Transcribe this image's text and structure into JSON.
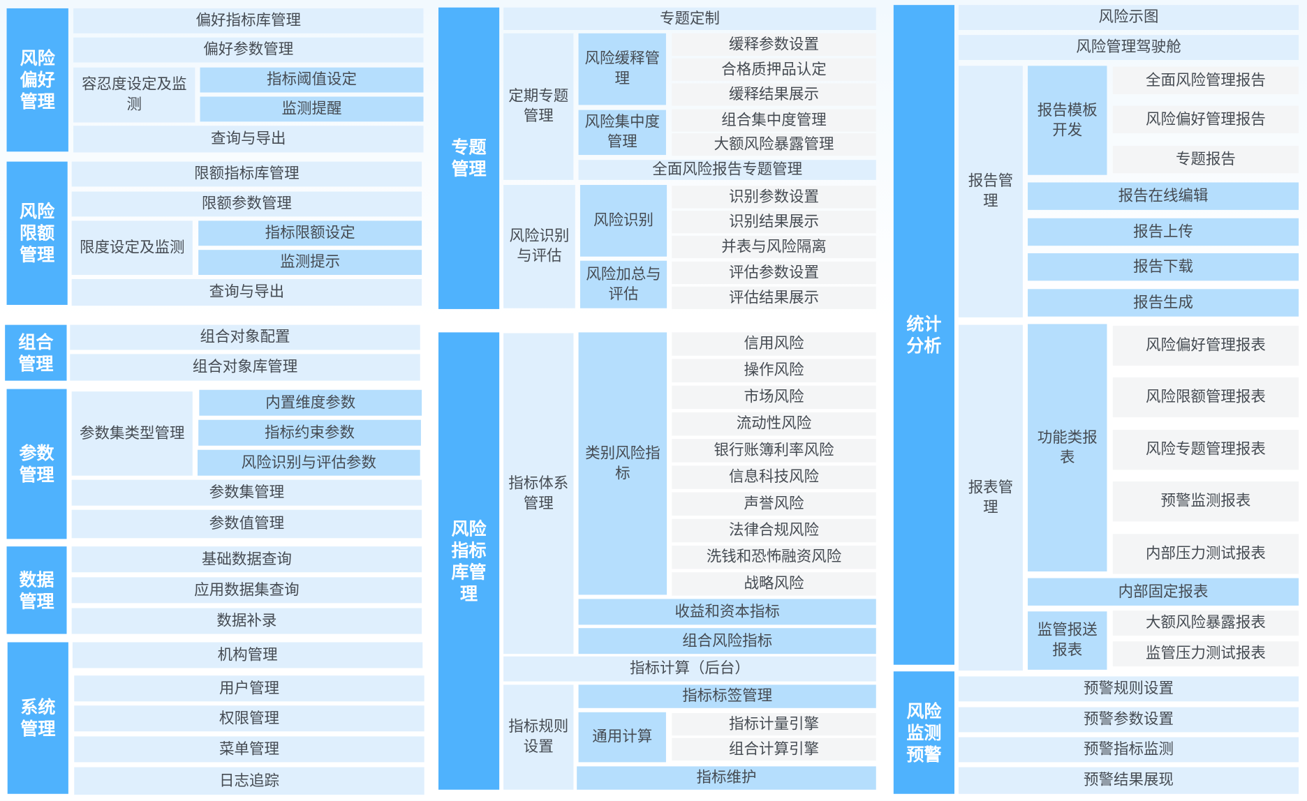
{
  "colors": {
    "primary": "#4fb2fd",
    "secondary": "#b5defd",
    "tertiary": "#dfeffd",
    "leaf": "#f4f5f6",
    "text": "#454b52"
  },
  "risk_appetite": {
    "title": "风险偏好管理",
    "items": [
      "偏好指标库管理",
      "偏好参数管理",
      "容忍度设定及监测",
      "指标阈值设定",
      "监测提醒",
      "查询与导出"
    ]
  },
  "risk_limit": {
    "title": "风险限额管理",
    "items": [
      "限额指标库管理",
      "限额参数管理",
      "限度设定及监测",
      "指标限额设定",
      "监测提示",
      "查询与导出"
    ]
  },
  "portfolio": {
    "title": "组合管理",
    "items": [
      "组合对象配置",
      "组合对象库管理"
    ]
  },
  "parameters": {
    "title": "参数管理",
    "items": [
      "参数集类型管理",
      "内置维度参数",
      "指标约束参数",
      "风险识别与评估参数",
      "参数集管理",
      "参数值管理"
    ]
  },
  "data_mgmt": {
    "title": "数据管理",
    "items": [
      "基础数据查询",
      "应用数据集查询",
      "数据补录"
    ]
  },
  "system": {
    "title": "系统管理",
    "items": [
      "机构管理",
      "用户管理",
      "权限管理",
      "菜单管理",
      "日志追踪"
    ]
  },
  "topic": {
    "title": "专题管理",
    "custom": "专题定制",
    "periodic": {
      "title": "定期专题管理",
      "mitigation": {
        "title": "风险缓释管理",
        "items": [
          "缓释参数设置",
          "合格质押品认定",
          "缓释结果展示"
        ]
      },
      "concentration": {
        "title": "风险集中度管理",
        "items": [
          "组合集中度管理",
          "大额风险暴露管理"
        ]
      },
      "report": "全面风险报告专题管理"
    },
    "identify_assess": {
      "title": "风险识别与评估",
      "identify": {
        "title": "风险识别",
        "items": [
          "识别参数设置",
          "识别结果展示",
          "并表与风险隔离"
        ]
      },
      "aggregate": {
        "title": "风险加总与评估",
        "items": [
          "评估参数设置",
          "评估结果展示"
        ]
      }
    }
  },
  "indicator_lib": {
    "title": "风险指标库管理",
    "system": {
      "title": "指标体系管理",
      "category": {
        "title": "类别风险指标",
        "items": [
          "信用风险",
          "操作风险",
          "市场风险",
          "流动性风险",
          "银行账簿利率风险",
          "信息科技风险",
          "声誉风险",
          "法律合规风险",
          "洗钱和恐怖融资风险",
          "战略风险"
        ]
      },
      "capital": "收益和资本指标",
      "portfolio": "组合风险指标"
    },
    "calc": "指标计算（后台）",
    "rules": {
      "title": "指标规则设置",
      "tags": "指标标签管理",
      "general": {
        "title": "通用计算",
        "items": [
          "指标计量引擎",
          "组合计算引擎"
        ]
      },
      "maintain": "指标维护"
    }
  },
  "stats": {
    "title": "统计分析",
    "risk_map": "风险示图",
    "cockpit": "风险管理驾驶舱",
    "report": {
      "title": "报告管理",
      "template": {
        "title": "报告模板开发",
        "items": [
          "全面风险管理报告",
          "风险偏好管理报告",
          "专题报告"
        ]
      },
      "items": [
        "报告在线编辑",
        "报告上传",
        "报告下载",
        "报告生成"
      ]
    },
    "tables": {
      "title": "报表管理",
      "functional": {
        "title": "功能类报表",
        "items": [
          "风险偏好管理报表",
          "风险限额管理报表",
          "风险专题管理报表",
          "预警监测报表",
          "内部压力测试报表"
        ]
      },
      "internal": "内部固定报表",
      "regulatory": {
        "title": "监管报送报表",
        "items": [
          "大额风险暴露报表",
          "监管压力测试报表"
        ]
      }
    }
  },
  "monitoring": {
    "title": "风险监测预警",
    "items": [
      "预警规则设置",
      "预警参数设置",
      "预警指标监测",
      "预警结果展现"
    ]
  }
}
